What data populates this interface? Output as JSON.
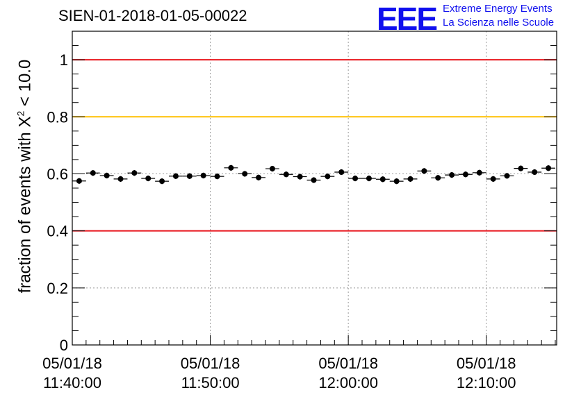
{
  "chart_data": {
    "type": "scatter",
    "title": "SIEN-01-2018-01-05-00022",
    "ylabel_prefix": "fraction of events with X",
    "ylabel_exponent": "2",
    "ylabel_suffix": " < 10.0",
    "xlabel": "",
    "ylim": [
      0,
      1.1
    ],
    "y_ticks": [
      0,
      0.2,
      0.4,
      0.6,
      0.8,
      1
    ],
    "y_tick_labels": [
      "0",
      "0.2",
      "0.4",
      "0.6",
      "0.8",
      "1"
    ],
    "x_range_minutes": [
      11.0,
      46.1
    ],
    "x_range_note": "minutes after 11:29:00",
    "x_ticks_minutes": [
      11,
      21,
      31,
      41
    ],
    "x_tick_labels": [
      {
        "date": "05/01/18",
        "time": "11:40:00"
      },
      {
        "date": "05/01/18",
        "time": "11:50:00"
      },
      {
        "date": "05/01/18",
        "time": "12:00:00"
      },
      {
        "date": "05/01/18",
        "time": "12:10:00"
      }
    ],
    "grid": true,
    "reference_lines": [
      {
        "y": 1.0,
        "color": "#e8141c"
      },
      {
        "y": 0.8,
        "color": "#ffc000"
      },
      {
        "y": 0.4,
        "color": "#e8141c"
      }
    ],
    "x_bin_width_minutes": 1,
    "x": [
      11.5,
      12.5,
      13.5,
      14.5,
      15.5,
      16.5,
      17.5,
      18.5,
      19.5,
      20.5,
      21.5,
      22.5,
      23.5,
      24.5,
      25.5,
      26.5,
      27.5,
      28.5,
      29.5,
      30.5,
      31.5,
      32.5,
      33.5,
      34.5,
      35.5,
      36.5,
      37.5,
      38.5,
      39.5,
      40.5,
      41.5,
      42.5,
      43.5,
      44.5,
      45.5
    ],
    "values": [
      0.575,
      0.603,
      0.594,
      0.582,
      0.603,
      0.584,
      0.574,
      0.592,
      0.592,
      0.594,
      0.591,
      0.621,
      0.6,
      0.587,
      0.618,
      0.598,
      0.59,
      0.578,
      0.591,
      0.606,
      0.584,
      0.584,
      0.581,
      0.574,
      0.582,
      0.61,
      0.586,
      0.596,
      0.598,
      0.604,
      0.582,
      0.593,
      0.619,
      0.606,
      0.62
    ],
    "errors": [
      0.01,
      0.01,
      0.01,
      0.01,
      0.01,
      0.01,
      0.01,
      0.01,
      0.01,
      0.01,
      0.01,
      0.01,
      0.01,
      0.01,
      0.01,
      0.01,
      0.01,
      0.01,
      0.01,
      0.01,
      0.01,
      0.01,
      0.01,
      0.01,
      0.01,
      0.01,
      0.01,
      0.01,
      0.01,
      0.01,
      0.01,
      0.01,
      0.01,
      0.01,
      0.01
    ]
  },
  "logo": {
    "mark": "EEE",
    "line1": "Extreme Energy Events",
    "line2": "La Scienza nelle Scuole",
    "color": "#1010ee"
  }
}
